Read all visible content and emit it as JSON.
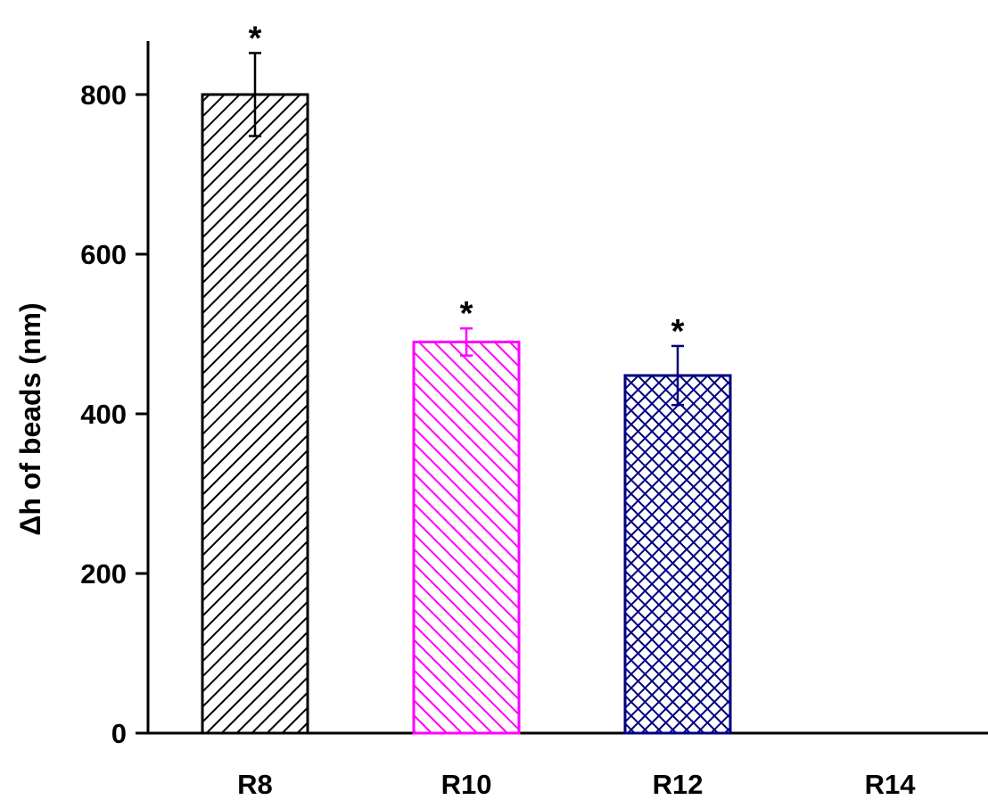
{
  "chart_data": {
    "type": "bar",
    "title": "",
    "xlabel": "",
    "ylabel": "Δh of beads (nm)",
    "ylim": [
      0,
      860
    ],
    "yticks": [
      0,
      200,
      400,
      600,
      800
    ],
    "grid": false,
    "legend": "none",
    "categories": [
      "R8",
      "R10",
      "R12",
      "R14"
    ],
    "values": [
      800,
      490,
      448,
      0
    ],
    "errors": [
      52,
      17,
      37,
      0
    ],
    "annotations": [
      "*",
      "*",
      "*",
      ""
    ],
    "colors": [
      "#000000",
      "#ff00ff",
      "#000080",
      "#000000"
    ],
    "patterns": [
      "diagonal-hatch",
      "back-diagonal-hatch",
      "crosshatch",
      "none"
    ]
  }
}
